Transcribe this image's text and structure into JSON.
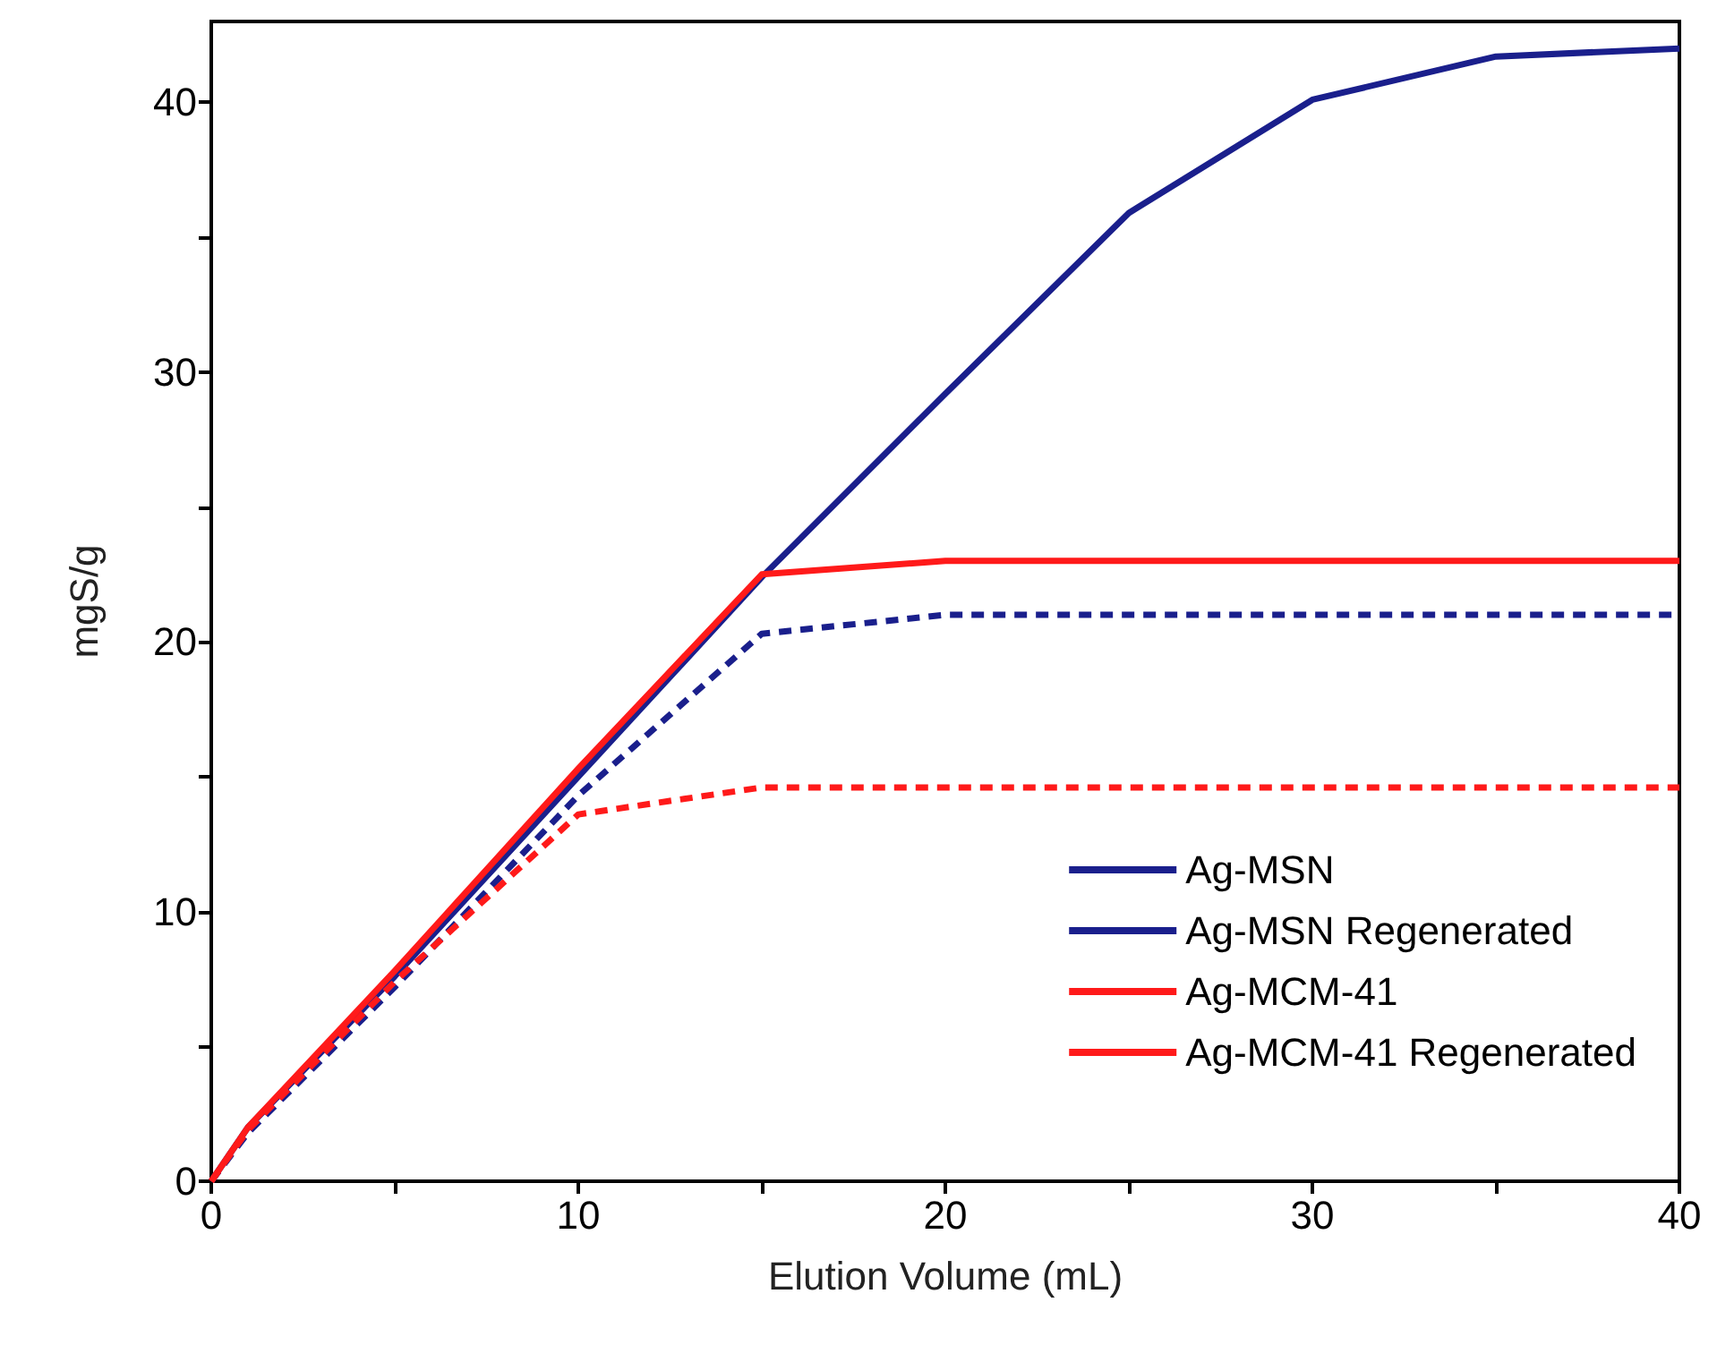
{
  "chart_data": {
    "type": "line",
    "xlabel": "Elution Volume (mL)",
    "ylabel": "mgS/g",
    "xlim": [
      0,
      40
    ],
    "xticks": [
      0,
      {
        "value": 5,
        "label": null
      },
      10,
      {
        "value": 15,
        "label": null
      },
      20,
      {
        "value": 25,
        "label": null
      },
      30,
      {
        "value": 35,
        "label": null
      },
      40
    ],
    "ylim": [
      0,
      43
    ],
    "yticks": [
      0,
      {
        "value": 5,
        "label": null
      },
      10,
      {
        "value": 15,
        "label": null
      },
      20,
      {
        "value": 25,
        "label": null
      },
      30,
      {
        "value": 35,
        "label": null
      },
      40
    ],
    "grid": false,
    "legend": "right",
    "marker": "none",
    "series": [
      {
        "name": "Ag-MSN",
        "color": "#1a1f8c",
        "line_style": "solid",
        "x": [
          0,
          1,
          5,
          10,
          15,
          20,
          25,
          30,
          35,
          40
        ],
        "values": [
          0,
          2,
          7.6,
          15,
          22.4,
          29.2,
          35.9,
          40.1,
          41.7,
          42
        ]
      },
      {
        "name": "Ag-MSN Regenerated",
        "color": "#1a1f8c",
        "line_style": "dashed",
        "x": [
          0,
          1,
          5,
          10,
          15,
          20,
          25,
          30,
          35,
          40
        ],
        "values": [
          0,
          1.8,
          7.2,
          14.3,
          20.3,
          21,
          21,
          21,
          21,
          21
        ]
      },
      {
        "name": "Ag-MCM-41",
        "color": "#ff1a1a",
        "line_style": "solid",
        "x": [
          0,
          1,
          5,
          10,
          15,
          20,
          25,
          30,
          35,
          40
        ],
        "values": [
          0,
          2,
          7.8,
          15.3,
          22.5,
          23,
          23,
          23,
          23,
          23
        ]
      },
      {
        "name": "Ag-MCM-41 Regenerated",
        "color": "#ff1a1a",
        "line_style": "dashed",
        "x": [
          0,
          1,
          5,
          10,
          15,
          20,
          25,
          30,
          35,
          40
        ],
        "values": [
          0,
          1.9,
          7.4,
          13.6,
          14.6,
          14.6,
          14.6,
          14.6,
          14.6,
          14.6
        ]
      }
    ]
  }
}
